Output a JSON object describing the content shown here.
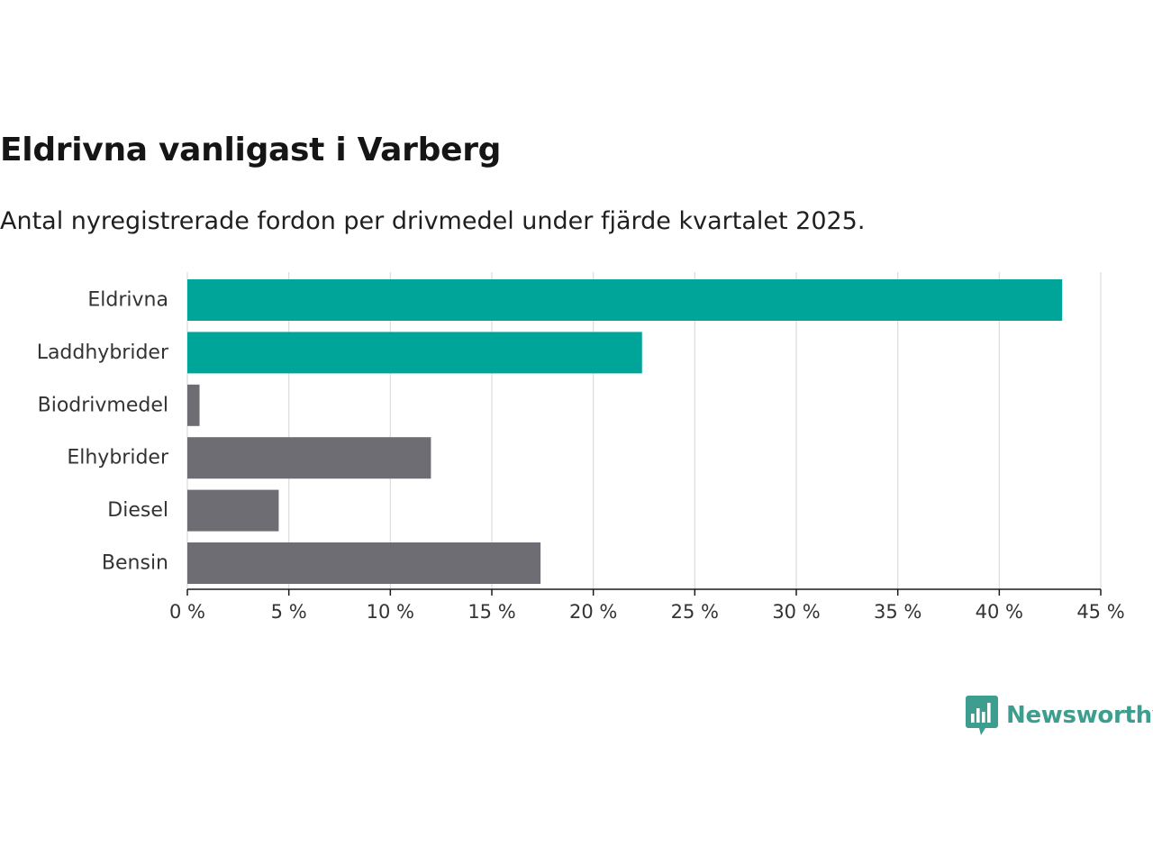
{
  "header": {
    "title": "Eldrivna vanligast i Varberg",
    "subtitle": "Antal nyregistrerade fordon per drivmedel under fjärde kvartalet 2025."
  },
  "chart_data": {
    "type": "bar",
    "orientation": "horizontal",
    "categories": [
      "Eldrivna",
      "Laddhybrider",
      "Biodrivmedel",
      "Elhybrider",
      "Diesel",
      "Bensin"
    ],
    "values": [
      43.1,
      22.4,
      0.6,
      12.0,
      4.5,
      17.4
    ],
    "colors": [
      "#00a59a",
      "#00a59a",
      "#6e6d73",
      "#6e6d73",
      "#6e6d73",
      "#6e6d73"
    ],
    "xlim": [
      0,
      45
    ],
    "xticks": [
      0,
      5,
      10,
      15,
      20,
      25,
      30,
      35,
      40,
      45
    ],
    "tick_labels": [
      "0 %",
      "5 %",
      "10 %",
      "15 %",
      "20 %",
      "25 %",
      "30 %",
      "35 %",
      "40 %",
      "45 %"
    ],
    "grid": true,
    "xlabel": "",
    "ylabel": ""
  },
  "brand": {
    "name": "Newsworthy",
    "color": "#3d9e8f"
  }
}
